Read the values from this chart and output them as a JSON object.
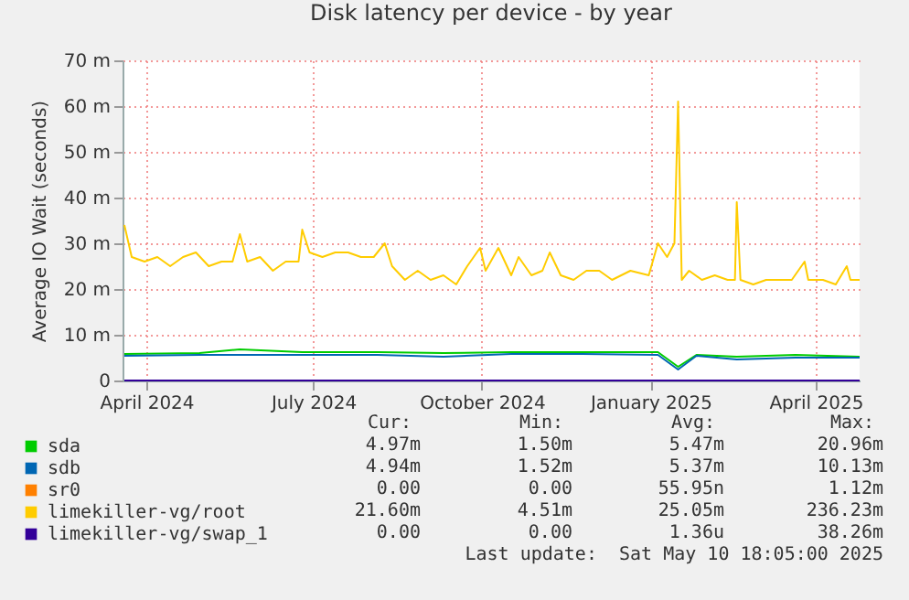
{
  "chart_data": {
    "type": "line",
    "title": "Disk latency per device - by year",
    "ylabel": "Average IO Wait (seconds)",
    "xlim": [
      "2024-04-03",
      "2025-05-10"
    ],
    "xticks": [
      {
        "value": "2024-04-16",
        "label": "April 2024"
      },
      {
        "value": "2024-07-16",
        "label": "July 2024"
      },
      {
        "value": "2024-10-16",
        "label": "October 2024"
      },
      {
        "value": "2025-01-16",
        "label": "January 2025"
      },
      {
        "value": "2025-04-16",
        "label": "April 2025"
      }
    ],
    "ylim": [
      0,
      70
    ],
    "yticks": [
      0,
      {
        "value": 10,
        "label": "10 m"
      },
      {
        "value": 20,
        "label": "20 m"
      },
      {
        "value": 30,
        "label": "30 m"
      },
      {
        "value": 40,
        "label": "40 m"
      },
      {
        "value": 50,
        "label": "50 m"
      },
      {
        "value": 60,
        "label": "60 m"
      },
      {
        "value": 70,
        "label": "70 m"
      }
    ],
    "grid": true,
    "legend": "bottom",
    "marker": "none",
    "line_style": "solid",
    "series": [
      {
        "name": "sda",
        "color": "#00cc00",
        "x": [
          "2024-04-04",
          "2024-05-15",
          "2024-06-06",
          "2024-07-10",
          "2024-08-20",
          "2024-09-25",
          "2024-11-01",
          "2024-12-10",
          "2025-01-20",
          "2025-01-31",
          "2025-02-10",
          "2025-03-04",
          "2025-04-05",
          "2025-05-10"
        ],
        "values": [
          5.8,
          6.0,
          6.8,
          6.2,
          6.2,
          6.0,
          6.2,
          6.2,
          6.2,
          3,
          5.6,
          5.2,
          5.6,
          5.2
        ]
      },
      {
        "name": "sdb",
        "color": "#0066b3",
        "x": [
          "2024-04-04",
          "2024-05-15",
          "2024-06-06",
          "2024-07-10",
          "2024-08-20",
          "2024-09-25",
          "2024-11-01",
          "2024-12-10",
          "2025-01-20",
          "2025-01-31",
          "2025-02-10",
          "2025-03-04",
          "2025-04-05",
          "2025-05-10"
        ],
        "values": [
          5.4,
          5.6,
          5.6,
          5.6,
          5.6,
          5.2,
          5.8,
          5.8,
          5.6,
          2.4,
          5.4,
          4.6,
          5.0,
          5.0
        ]
      },
      {
        "name": "sr0",
        "color": "#ff8000"
      },
      {
        "name": "limekiller-vg/root",
        "color": "#ffcc00",
        "x": [
          "2024-04-04",
          "2024-04-08",
          "2024-04-15",
          "2024-04-22",
          "2024-04-29",
          "2024-05-06",
          "2024-05-13",
          "2024-05-20",
          "2024-05-27",
          "2024-06-02",
          "2024-06-06",
          "2024-06-10",
          "2024-06-17",
          "2024-06-24",
          "2024-07-01",
          "2024-07-08",
          "2024-07-10",
          "2024-07-14",
          "2024-07-21",
          "2024-07-28",
          "2024-08-04",
          "2024-08-11",
          "2024-08-18",
          "2024-08-24",
          "2024-08-28",
          "2024-09-04",
          "2024-09-11",
          "2024-09-18",
          "2024-09-25",
          "2024-10-02",
          "2024-10-08",
          "2024-10-15",
          "2024-10-18",
          "2024-10-25",
          "2024-11-01",
          "2024-11-05",
          "2024-11-12",
          "2024-11-18",
          "2024-11-22",
          "2024-11-28",
          "2024-12-05",
          "2024-12-12",
          "2024-12-19",
          "2024-12-26",
          "2025-01-05",
          "2025-01-15",
          "2025-01-20",
          "2025-01-25",
          "2025-01-29",
          "2025-01-31",
          "2025-02-02",
          "2025-02-06",
          "2025-02-13",
          "2025-02-20",
          "2025-02-27",
          "2025-03-03",
          "2025-03-04",
          "2025-03-06",
          "2025-03-13",
          "2025-03-20",
          "2025-03-27",
          "2025-04-03",
          "2025-04-10",
          "2025-04-12",
          "2025-04-20",
          "2025-04-27",
          "2025-05-03",
          "2025-05-05",
          "2025-05-10"
        ],
        "values": [
          34,
          27,
          26,
          27,
          25,
          27,
          28,
          25,
          26,
          26,
          32,
          26,
          27,
          24,
          26,
          26,
          33,
          28,
          27,
          28,
          28,
          27,
          27,
          30,
          25,
          22,
          24,
          22,
          23,
          21,
          25,
          29,
          24,
          29,
          23,
          27,
          23,
          24,
          28,
          23,
          22,
          24,
          24,
          22,
          24,
          23,
          30,
          27,
          30,
          61,
          22,
          24,
          22,
          23,
          22,
          22,
          39,
          22,
          21,
          22,
          22,
          22,
          26,
          22,
          22,
          21,
          25,
          22,
          22
        ]
      },
      {
        "name": "limekiller-vg/swap_1",
        "color": "#330099",
        "x": [
          "2024-04-04",
          "2025-05-10"
        ],
        "values": [
          0,
          0
        ]
      }
    ],
    "annotations": [
      "Cur:",
      "Min:",
      "Avg:",
      "Max:",
      "4.97m",
      "1.50m",
      "5.47m",
      "20.96m",
      "4.94m",
      "1.52m",
      "5.37m",
      "10.13m",
      "0.00",
      "0.00",
      "55.95n",
      "1.12m",
      "21.60m",
      "4.51m",
      "25.05m",
      "236.23m",
      "0.00",
      "0.00",
      "1.36u",
      "38.26m",
      "Last update:  Sat May 10 18:05:00 2025"
    ]
  }
}
